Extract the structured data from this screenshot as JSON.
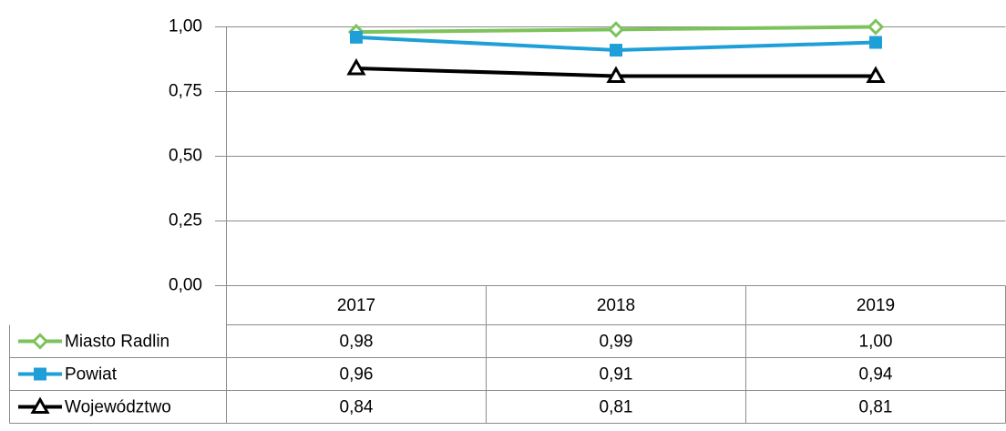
{
  "chart_data": {
    "type": "line",
    "categories": [
      "2017",
      "2018",
      "2019"
    ],
    "series": [
      {
        "name": "Miasto Radlin",
        "color": "#7dc35b",
        "marker": "diamond",
        "values": [
          0.98,
          0.99,
          1.0
        ],
        "value_labels": [
          "0,98",
          "0,99",
          "1,00"
        ]
      },
      {
        "name": "Powiat",
        "color": "#1e9fd8",
        "marker": "square",
        "values": [
          0.96,
          0.91,
          0.94
        ],
        "value_labels": [
          "0,96",
          "0,91",
          "0,94"
        ]
      },
      {
        "name": "Województwo",
        "color": "#000000",
        "marker": "triangle",
        "values": [
          0.84,
          0.81,
          0.81
        ],
        "value_labels": [
          "0,84",
          "0,81",
          "0,81"
        ]
      }
    ],
    "ylim": [
      0,
      1
    ],
    "yticks": [
      {
        "value": 0,
        "label": "0,00"
      },
      {
        "value": 0.25,
        "label": "0,25"
      },
      {
        "value": 0.5,
        "label": "0,50"
      },
      {
        "value": 0.75,
        "label": "0,75"
      },
      {
        "value": 1,
        "label": "1,00"
      }
    ],
    "grid": true,
    "data_table": true
  }
}
